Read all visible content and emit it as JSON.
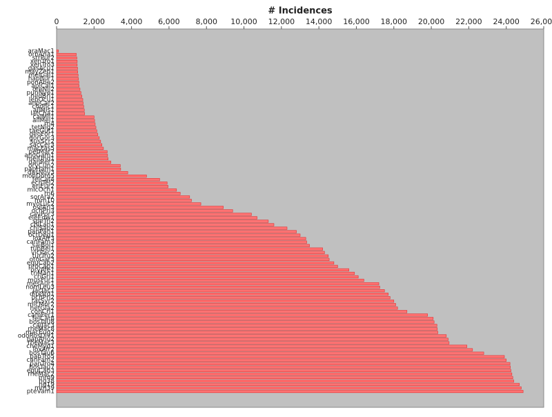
{
  "chart_data": {
    "type": "barh",
    "title": "# Incidences",
    "categories": [
      "araMac1",
      "ornAna1",
      "strPur2",
      "xenTro1",
      "xenTro3",
      "gasAcu1",
      "mayZeb1",
      "melGal1",
      "hapBur1",
      "ponAbe2",
      "aplCal1",
      "oreNil2",
      "punNye1",
      "neoBri1",
      "lepOcu1",
      "anoCar2",
      "chrPic1",
      "allMis1",
      "latCha1",
      "calMil1",
      "ailMel1",
      "rn4",
      "tetNig2",
      "taeGut1",
      "geoFor1",
      "gorGor3",
      "susScr2",
      "sacCer3",
      "macFas5",
      "petMar2",
      "anoGam1",
      "melUnd1",
      "danRer7",
      "oryCun2",
      "papHam1",
      "dasNov3",
      "monDom5",
      "felCat4",
      "echTel2",
      "eriEur2",
      "micOch1",
      "rn6",
      "sorAra2",
      "mm10",
      "myoLuc2",
      "oviAri3",
      "ochPri3",
      "cavPor3",
      "eleEdw1",
      "speTri2",
      "chiLan1",
      "chlSab2",
      "panPan1",
      "octDeg1",
      "loxAfr3",
      "canFam3",
      "saiBol1",
      "tupBel1",
      "vicPac2",
      "turTru2",
      "otoGar3",
      "equCab2",
      "proCap1",
      "oryAfe1",
      "triMan1",
      "criGri1",
      "musFur1",
      "mesAur1",
      "nomLeu3",
      "jacJac1",
      "dipOrd1",
      "ochPri2",
      "tarSyr2",
      "micMur2",
      "hetGla2",
      "conCri1",
      "camFer1",
      "felCat8",
      "bosTau8",
      "calJac3",
      "rheMac8",
      "macEug2",
      "odoRosDiv1",
      "papAnu2",
      "rheMac3",
      "cheMyd1",
      "loxAfr2",
      "bosTau6",
      "panTro5",
      "canFam2",
      "panTro4",
      "bosTau7",
      "equCab3",
      "rheMac2",
      "mm9",
      "hg38",
      "hg19",
      "mm39",
      "pteVam1"
    ],
    "values": [
      100,
      1050,
      1080,
      1100,
      1100,
      1120,
      1130,
      1150,
      1170,
      1190,
      1200,
      1250,
      1300,
      1350,
      1400,
      1420,
      1450,
      1480,
      1500,
      2000,
      2030,
      2060,
      2100,
      2150,
      2200,
      2280,
      2350,
      2420,
      2500,
      2700,
      2720,
      2750,
      2900,
      3400,
      3420,
      3800,
      4800,
      5500,
      5900,
      5950,
      6400,
      6600,
      7100,
      7200,
      7700,
      8900,
      9400,
      10400,
      10700,
      11300,
      11600,
      12300,
      12800,
      13000,
      13300,
      13350,
      13500,
      14200,
      14300,
      14500,
      14550,
      14800,
      15000,
      15600,
      15900,
      16100,
      16400,
      17200,
      17250,
      17500,
      17700,
      17800,
      18000,
      18100,
      18200,
      18700,
      19800,
      20100,
      20150,
      20300,
      20320,
      20350,
      20800,
      20900,
      20950,
      21900,
      22200,
      22800,
      23900,
      24000,
      24200,
      24220,
      24250,
      24300,
      24350,
      24400,
      24700,
      24800,
      24900
    ],
    "color": "#ff7373",
    "xlim": [
      0,
      26000
    ],
    "xticks": [
      0,
      {
        "value": 2000,
        "label": "2,000"
      },
      {
        "value": 4000,
        "label": "4,000"
      },
      {
        "value": 6000,
        "label": "6,000"
      },
      {
        "value": 8000,
        "label": "8,000"
      },
      {
        "value": 10000,
        "label": "10,000"
      },
      {
        "value": 12000,
        "label": "12,000"
      },
      {
        "value": 14000,
        "label": "14,000"
      },
      {
        "value": 16000,
        "label": "16,000"
      },
      {
        "value": 18000,
        "label": "18,000"
      },
      {
        "value": 20000,
        "label": "20,000"
      },
      {
        "value": 22000,
        "label": "22,000"
      },
      {
        "value": 24000,
        "label": "24,000"
      },
      {
        "value": 26000,
        "label": "26,000"
      }
    ]
  }
}
